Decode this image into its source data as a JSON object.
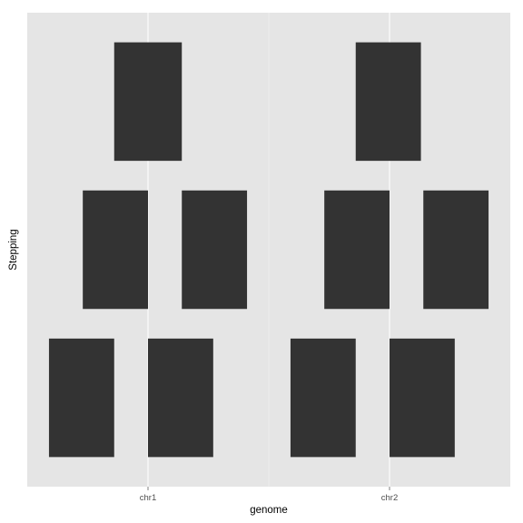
{
  "chart_data": {
    "type": "bar",
    "xlabel": "genome",
    "ylabel": "Stepping",
    "categories": [
      "chr1",
      "chr2"
    ],
    "grid": true,
    "colors": {
      "panel": "#e5e5e5",
      "grid": "#ffffff",
      "bar": "#333333",
      "tick_text": "#4d4d4d",
      "title_text": "#000000"
    },
    "xlim": [
      0.5,
      2.5
    ],
    "ylim": [
      0.4,
      3.6
    ],
    "bars": [
      {
        "category": "chr1",
        "start": 0.59,
        "end": 0.86,
        "step": 1
      },
      {
        "category": "chr1",
        "start": 1.0,
        "end": 1.27,
        "step": 1
      },
      {
        "category": "chr1",
        "start": 0.73,
        "end": 1.0,
        "step": 2
      },
      {
        "category": "chr1",
        "start": 1.14,
        "end": 1.41,
        "step": 2
      },
      {
        "category": "chr1",
        "start": 0.86,
        "end": 1.14,
        "step": 3
      },
      {
        "category": "chr2",
        "start": 1.59,
        "end": 1.86,
        "step": 1
      },
      {
        "category": "chr2",
        "start": 2.0,
        "end": 2.27,
        "step": 1
      },
      {
        "category": "chr2",
        "start": 1.73,
        "end": 2.0,
        "step": 2
      },
      {
        "category": "chr2",
        "start": 2.14,
        "end": 2.41,
        "step": 2
      },
      {
        "category": "chr2",
        "start": 1.86,
        "end": 2.13,
        "step": 3
      }
    ]
  }
}
